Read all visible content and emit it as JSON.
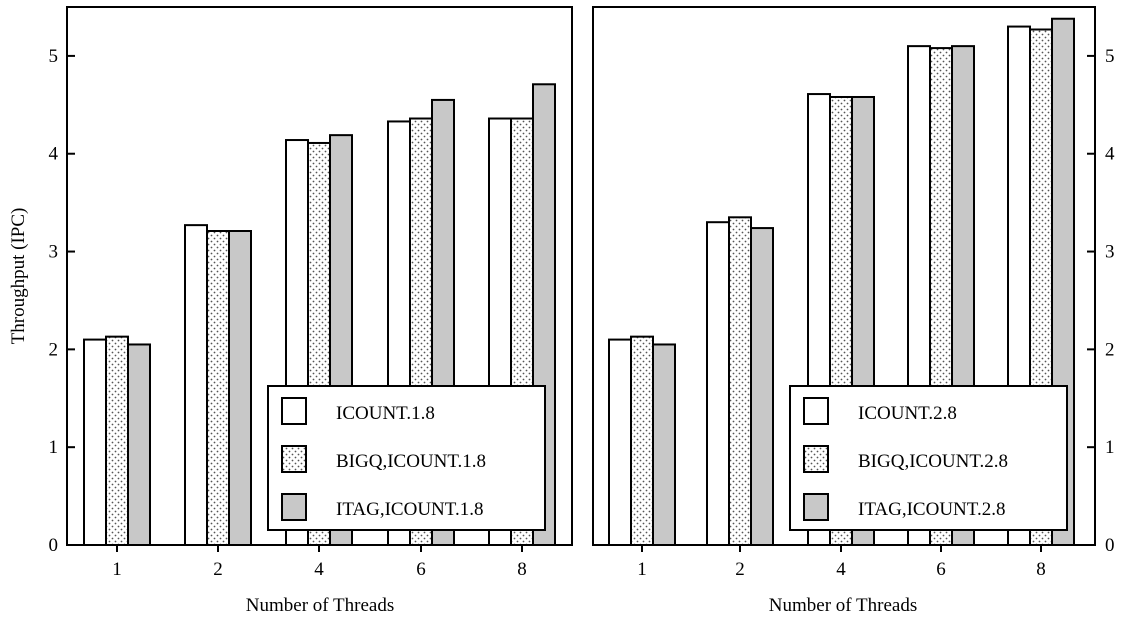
{
  "chart_data": [
    {
      "type": "bar",
      "categories": [
        "1",
        "2",
        "4",
        "6",
        "8"
      ],
      "series": [
        {
          "name": "ICOUNT.1.8",
          "pattern": "empty",
          "values": [
            2.1,
            3.27,
            4.14,
            4.33,
            4.36
          ]
        },
        {
          "name": "BIGQ,ICOUNT.1.8",
          "pattern": "dotted",
          "values": [
            2.13,
            3.21,
            4.11,
            4.36,
            4.36
          ]
        },
        {
          "name": "ITAG,ICOUNT.1.8",
          "pattern": "gray",
          "values": [
            2.05,
            3.21,
            4.19,
            4.55,
            4.71
          ]
        }
      ],
      "xlabel": "Number of Threads",
      "ylabel": "Throughput (IPC)",
      "ylim": [
        0,
        5.5
      ],
      "yticks": [
        "0",
        "1",
        "2",
        "3",
        "4",
        "5"
      ],
      "y_axis_side": "left",
      "legend_position": "lower-right",
      "grid": false
    },
    {
      "type": "bar",
      "categories": [
        "1",
        "2",
        "4",
        "6",
        "8"
      ],
      "series": [
        {
          "name": "ICOUNT.2.8",
          "pattern": "empty",
          "values": [
            2.1,
            3.3,
            4.61,
            5.1,
            5.3
          ]
        },
        {
          "name": "BIGQ,ICOUNT.2.8",
          "pattern": "dotted",
          "values": [
            2.13,
            3.35,
            4.58,
            5.08,
            5.27
          ]
        },
        {
          "name": "ITAG,ICOUNT.2.8",
          "pattern": "gray",
          "values": [
            2.05,
            3.24,
            4.58,
            5.1,
            5.38
          ]
        }
      ],
      "xlabel": "Number of Threads",
      "ylabel": "",
      "ylim": [
        0,
        5.5
      ],
      "yticks": [
        "0",
        "1",
        "2",
        "3",
        "4",
        "5"
      ],
      "y_axis_side": "right",
      "legend_position": "lower-right",
      "grid": false
    }
  ],
  "colors": {
    "bar_outline": "#000000",
    "gray_fill": "#c8c8c8",
    "dot_color": "#555555",
    "background": "#ffffff"
  }
}
